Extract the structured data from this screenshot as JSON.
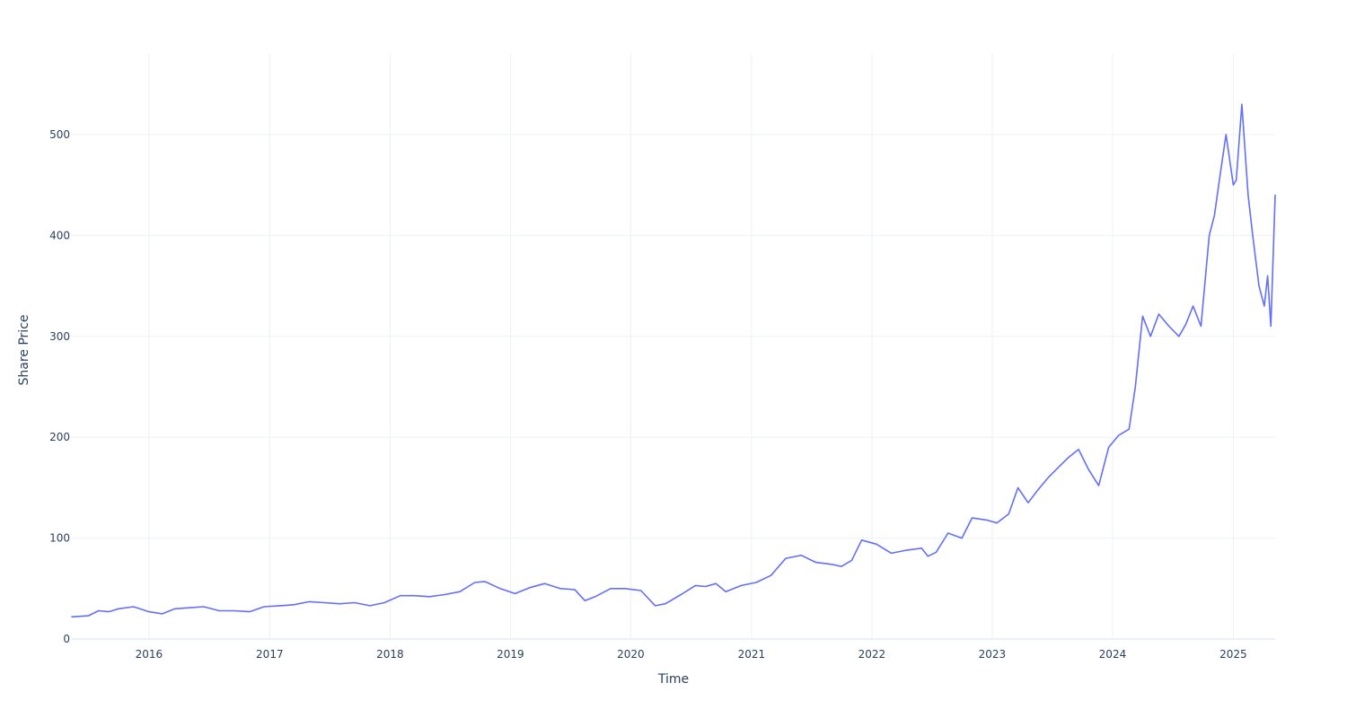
{
  "chart_data": {
    "type": "line",
    "xlabel": "Time",
    "ylabel": "Share Price",
    "xlim": [
      "2015-05-12",
      "2025-05-08"
    ],
    "ylim": [
      0,
      580
    ],
    "x_ticks": [
      "2016",
      "2017",
      "2018",
      "2019",
      "2020",
      "2021",
      "2022",
      "2023",
      "2024",
      "2025"
    ],
    "y_ticks": [
      0,
      100,
      200,
      300,
      400,
      500
    ],
    "grid": true,
    "line_color": "#636efa",
    "series": [
      {
        "x": [
          "2015-05-12",
          "2015-07-01",
          "2015-08-01",
          "2015-09-01",
          "2015-10-01",
          "2015-11-15",
          "2016-01-01",
          "2016-02-10",
          "2016-03-20",
          "2016-05-01",
          "2016-06-15",
          "2016-08-01",
          "2016-09-15",
          "2016-11-01",
          "2016-12-15",
          "2017-02-01",
          "2017-03-15",
          "2017-05-01",
          "2017-06-15",
          "2017-08-01",
          "2017-09-15",
          "2017-11-01",
          "2017-12-15",
          "2018-02-01",
          "2018-03-15",
          "2018-05-01",
          "2018-06-15",
          "2018-08-01",
          "2018-09-15",
          "2018-10-15",
          "2018-12-01",
          "2019-01-15",
          "2019-03-01",
          "2019-04-15",
          "2019-06-01",
          "2019-07-15",
          "2019-08-15",
          "2019-09-15",
          "2019-11-01",
          "2019-12-15",
          "2020-02-01",
          "2020-03-15",
          "2020-04-15",
          "2020-06-01",
          "2020-07-15",
          "2020-08-15",
          "2020-09-15",
          "2020-10-15",
          "2020-12-01",
          "2021-01-15",
          "2021-03-01",
          "2021-04-15",
          "2021-06-01",
          "2021-07-15",
          "2021-09-01",
          "2021-10-01",
          "2021-11-01",
          "2021-12-01",
          "2022-01-15",
          "2022-03-01",
          "2022-04-15",
          "2022-06-01",
          "2022-06-20",
          "2022-07-15",
          "2022-08-20",
          "2022-10-01",
          "2022-11-01",
          "2022-12-15",
          "2023-01-15",
          "2023-02-20",
          "2023-03-20",
          "2023-04-20",
          "2023-05-20",
          "2023-06-20",
          "2023-07-20",
          "2023-08-20",
          "2023-09-20",
          "2023-10-20",
          "2023-11-20",
          "2023-12-20",
          "2024-01-20",
          "2024-02-20",
          "2024-03-10",
          "2024-04-01",
          "2024-04-25",
          "2024-05-20",
          "2024-06-20",
          "2024-07-20",
          "2024-08-10",
          "2024-09-01",
          "2024-09-25",
          "2024-10-20",
          "2024-11-05",
          "2024-11-20",
          "2024-12-10",
          "2025-01-01",
          "2025-01-10",
          "2025-01-27",
          "2025-02-15",
          "2025-03-01",
          "2025-03-20",
          "2025-04-05",
          "2025-04-15",
          "2025-04-25",
          "2025-05-08"
        ],
        "y": [
          22,
          23,
          28,
          27,
          30,
          32,
          27,
          25,
          30,
          31,
          32,
          28,
          28,
          27,
          32,
          33,
          34,
          37,
          36,
          35,
          36,
          33,
          36,
          43,
          43,
          42,
          44,
          47,
          56,
          57,
          50,
          45,
          51,
          55,
          50,
          49,
          38,
          42,
          50,
          50,
          48,
          33,
          35,
          44,
          53,
          52,
          55,
          47,
          53,
          56,
          63,
          80,
          83,
          76,
          74,
          72,
          78,
          98,
          94,
          85,
          88,
          90,
          82,
          86,
          105,
          100,
          120,
          118,
          115,
          124,
          150,
          135,
          148,
          160,
          170,
          180,
          188,
          168,
          152,
          190,
          202,
          208,
          250,
          320,
          300,
          322,
          310,
          300,
          312,
          330,
          310,
          400,
          420,
          455,
          500,
          450,
          455,
          530,
          440,
          400,
          350,
          330,
          360,
          310,
          440
        ]
      }
    ]
  }
}
